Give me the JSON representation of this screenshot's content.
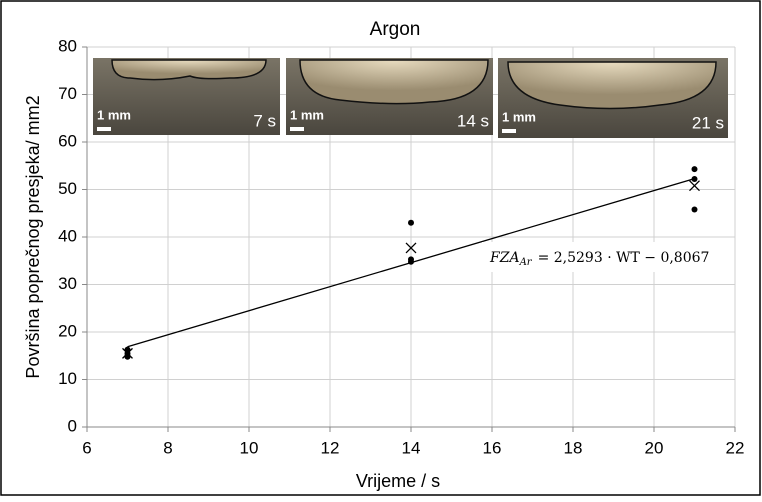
{
  "chart_data": {
    "type": "scatter",
    "title": "Argon",
    "x_label": "Vrijeme / s",
    "y_label": "Površina poprečnog presjeka/ mm2",
    "xlim": [
      6,
      22
    ],
    "xticks": [
      6,
      8,
      10,
      12,
      14,
      16,
      18,
      20,
      22
    ],
    "ylim": [
      0,
      80
    ],
    "yticks": [
      0,
      10,
      20,
      30,
      40,
      50,
      60,
      70,
      80
    ],
    "grid": true,
    "series": [
      {
        "marker": "dot",
        "color": "#000000",
        "x": [
          7,
          7,
          7,
          7,
          14,
          14,
          14,
          21,
          21,
          21
        ],
        "values": [
          16.3,
          15.5,
          15.0,
          14.8,
          43.0,
          35.3,
          34.8,
          54.3,
          52.2,
          45.8
        ]
      },
      {
        "marker": "cross",
        "color": "#000000",
        "x": [
          7,
          14,
          21
        ],
        "values": [
          15.5,
          37.7,
          50.8
        ]
      }
    ],
    "trendline": {
      "color": "#000000",
      "x": [
        7,
        21
      ],
      "values": [
        16.9,
        52.3
      ]
    },
    "equation": {
      "lhs": "FZA",
      "sub": "Ar",
      "rhs": "= 2,5293 · WT − 0,8067"
    },
    "insets": [
      {
        "scale": "1 mm",
        "time": "7 s"
      },
      {
        "scale": "1 mm",
        "time": "14 s"
      },
      {
        "scale": "1 mm",
        "time": "21 s"
      }
    ]
  }
}
